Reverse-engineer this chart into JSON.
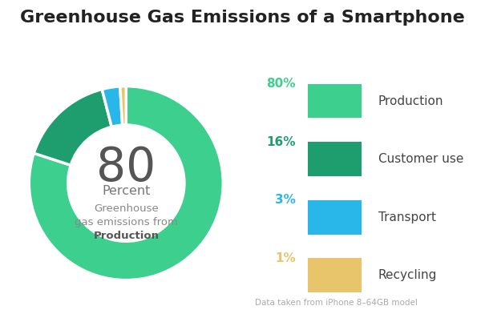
{
  "title": "Greenhouse Gas Emissions of a Smartphone",
  "slices": [
    80,
    16,
    3,
    1
  ],
  "labels": [
    "Production",
    "Customer use",
    "Transport",
    "Recycling"
  ],
  "colors": [
    "#3dcf8e",
    "#1e9e6e",
    "#29b6e8",
    "#e8c46a"
  ],
  "percentages": [
    "80%",
    "16%",
    "3%",
    "1%"
  ],
  "pct_colors": [
    "#3dcf8e",
    "#1e9e6e",
    "#29b6e8",
    "#e8c46a"
  ],
  "center_big": "80",
  "center_mid": "Percent",
  "center_sub1": "Greenhouse",
  "center_sub2": "gas emissions from",
  "center_sub3": "Production",
  "source_note": "Data taken from iPhone 8–64GB model",
  "bg_color": "#ffffff",
  "title_fontsize": 16,
  "donut_hole": 0.6,
  "start_angle": 90
}
